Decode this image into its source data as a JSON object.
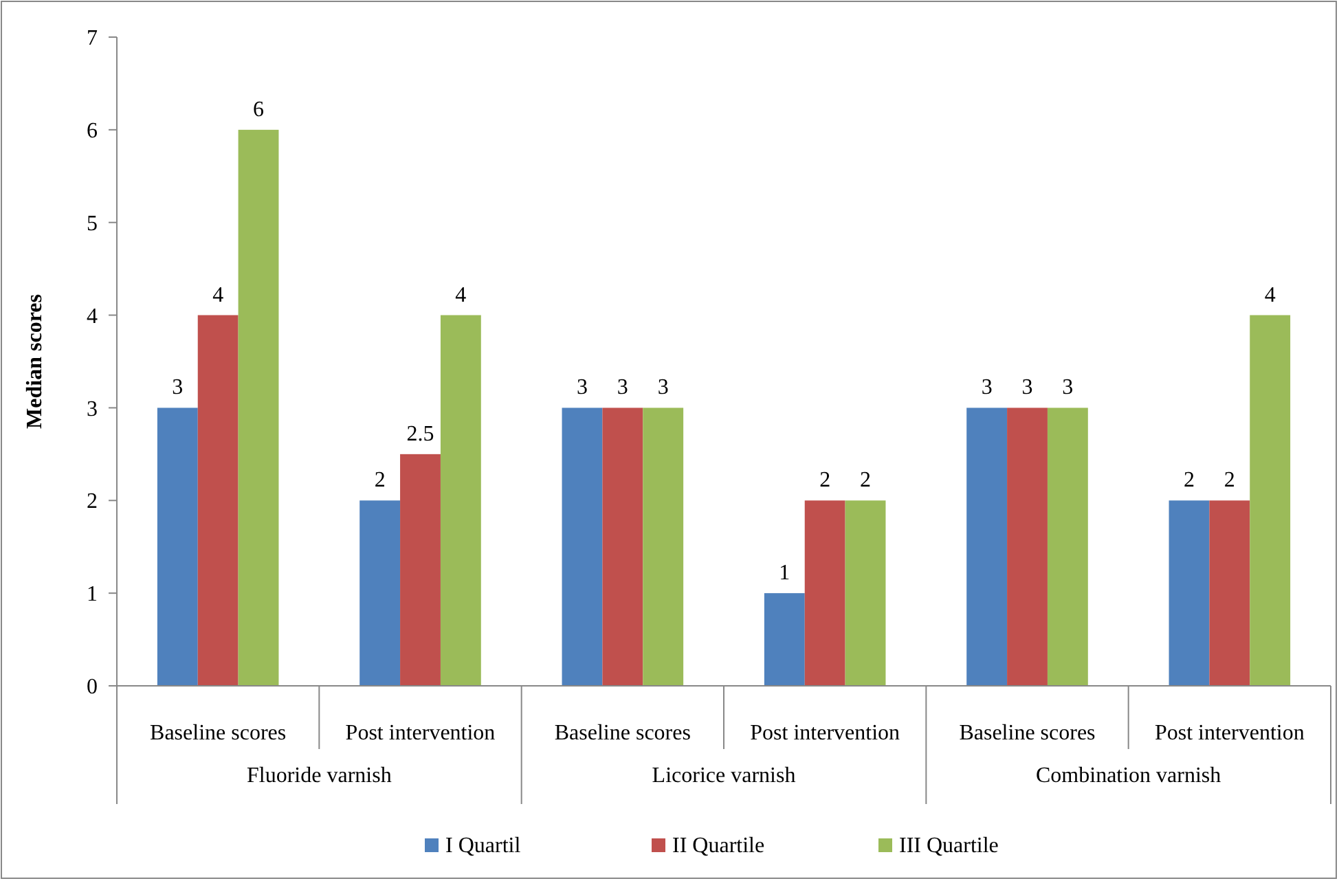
{
  "chart_data": {
    "type": "bar",
    "ylabel": "Median scores",
    "categories": [
      "Baseline scores",
      "Post intervention",
      "Baseline scores",
      "Post intervention",
      "Baseline scores",
      "Post intervention"
    ],
    "annotations": [
      "Fluoride varnish",
      "Licorice varnish",
      "Combination varnish"
    ],
    "series": [
      {
        "name": "I Quartil",
        "color": "#4f81bd",
        "values": [
          3,
          2,
          3,
          1,
          3,
          2
        ]
      },
      {
        "name": "II Quartile",
        "color": "#c0504d",
        "values": [
          4,
          2.5,
          3,
          2,
          3,
          2
        ]
      },
      {
        "name": "III Quartile",
        "color": "#9bbb59",
        "values": [
          6,
          4,
          3,
          2,
          3,
          4
        ]
      }
    ],
    "ylim": [
      0,
      7
    ],
    "yticks": [
      0,
      1,
      2,
      3,
      4,
      5,
      6,
      7
    ],
    "data_labels": true,
    "legend": "bottom",
    "grid": false
  }
}
